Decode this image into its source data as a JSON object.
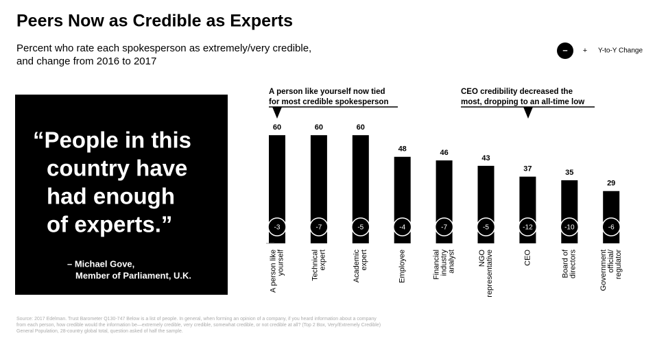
{
  "chart_data": {
    "type": "bar",
    "title": "Peers Now as Credible as Experts",
    "subtitle": [
      "Percent who rate each spokesperson as extremely/very credible,",
      "and change from 2016 to 2017"
    ],
    "legend": {
      "minus": "–",
      "plus": "+",
      "label": "Y-to-Y Change"
    },
    "annotations": [
      {
        "lines": [
          "A person like yourself now tied",
          "for most credible spokesperson"
        ]
      },
      {
        "lines": [
          "CEO credibility decreased the",
          "most, dropping to an all-time low"
        ]
      }
    ],
    "categories": [
      [
        "A person like",
        "yourself"
      ],
      [
        "Technical",
        "expert"
      ],
      [
        "Academic",
        "expert"
      ],
      [
        "Employee"
      ],
      [
        "Financial",
        "industry",
        "analyst"
      ],
      [
        "NGO",
        "representative"
      ],
      [
        "CEO"
      ],
      [
        "Board of",
        "directors"
      ],
      [
        "Government",
        "official/",
        "regulator"
      ]
    ],
    "values": [
      60,
      60,
      60,
      48,
      46,
      43,
      37,
      35,
      29
    ],
    "changes": [
      -3,
      -7,
      -5,
      -4,
      -7,
      -5,
      -12,
      -10,
      -6
    ],
    "color": "#000000",
    "quote": [
      "“People in this",
      "country have",
      "had enough",
      "of experts.”"
    ],
    "attribution": [
      "– Michael Gove,",
      "Member of Parliament, U.K."
    ],
    "source": [
      "Source: 2017 Edelman. Trust Barometer Q130-747 Below is a list of people. In general, when forming an opinion of a company, if you heard information about a company",
      "from each person, how credible would the information be—extremely credible, very credible, somewhat credible, or not credible at all? (Top 2 Box, Very/Extremely Credible)",
      "General Population, 28-country global total, question asked of half the sample."
    ]
  }
}
